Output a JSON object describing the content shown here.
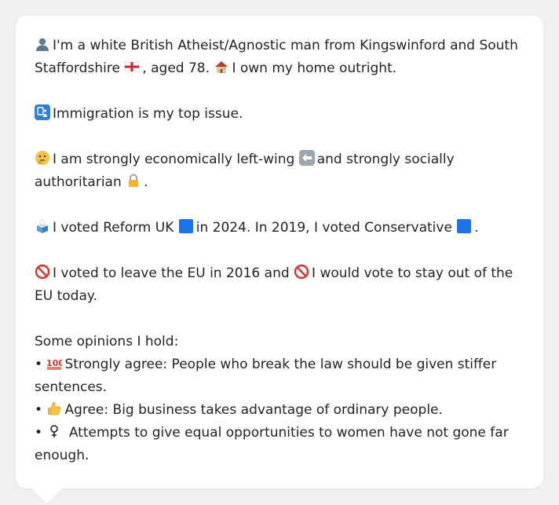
{
  "profile": {
    "p1_a": "I'm a white British Atheist/Agnostic man from Kingswinford and South Staffordshire",
    "p1_b": ", aged 78.",
    "p1_c": "I own my home outright.",
    "p2": "Immigration is my top issue.",
    "p3_a": "I am strongly economically left-wing",
    "p3_b": "and strongly socially authoritarian",
    "p3_c": ".",
    "p4_a": "I voted Reform UK",
    "p4_b": "in 2024. In 2019, I voted Conservative",
    "p4_c": ".",
    "p5_a": "I voted to leave the EU in 2016 and",
    "p5_b": "I would vote to stay out of the EU today."
  },
  "opinions": {
    "heading": "Some opinions I hold:",
    "items": [
      {
        "prefix": "Strongly agree:",
        "text": "People who break the law should be given stiffer sentences.",
        "icon": "hundred-points-icon"
      },
      {
        "prefix": "Agree:",
        "text": "Big business takes advantage of ordinary people.",
        "icon": "thumbs-up-icon"
      },
      {
        "prefix": "",
        "text": "Attempts to give equal opportunities to women have not gone far enough.",
        "icon": "female-sign-icon"
      }
    ]
  },
  "colors": {
    "card_bg": "#ffffff",
    "page_bg": "#eef0f2",
    "text": "#1f2327",
    "reform_square": "#1a73e8",
    "conservative_square": "#1a73e8"
  }
}
